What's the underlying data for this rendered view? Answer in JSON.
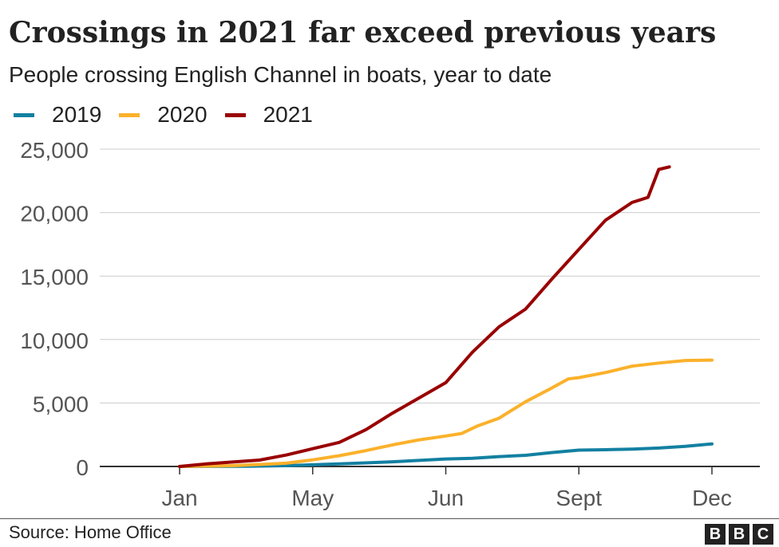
{
  "title": "Crossings in 2021 far exceed previous years",
  "subtitle": "People crossing English Channel in boats, year to date",
  "source": "Source: Home Office",
  "logo": [
    "B",
    "B",
    "C"
  ],
  "colors": {
    "2019": "#1380a1",
    "2020": "#fbb12b",
    "2021": "#990000",
    "grid": "#cccccc",
    "axis": "#333333"
  },
  "chart_data": {
    "type": "line",
    "xlabel": "",
    "ylabel": "",
    "x_ticks": [
      "Jan",
      "May",
      "Jun",
      "Sept",
      "Dec"
    ],
    "x_tick_month_pos": [
      0,
      2.5,
      5,
      7.5,
      10
    ],
    "xlim_month_pos": [
      -1.5,
      10.9
    ],
    "y_ticks": [
      "0",
      "5,000",
      "10,000",
      "15,000",
      "20,000",
      "25,000"
    ],
    "ylim": [
      0,
      25000
    ],
    "grid": true,
    "legend_position": "top-left",
    "series": [
      {
        "name": "2019",
        "color": "#1380a1",
        "x": [
          0.0,
          1.25,
          2.0,
          2.5,
          3.0,
          3.5,
          4.0,
          4.5,
          5.0,
          5.5,
          6.0,
          6.5,
          7.0,
          7.5,
          8.0,
          8.5,
          9.0,
          9.5,
          10.0
        ],
        "y": [
          0,
          20,
          60,
          130,
          200,
          280,
          370,
          480,
          590,
          650,
          780,
          880,
          1100,
          1290,
          1320,
          1370,
          1450,
          1590,
          1780
        ]
      },
      {
        "name": "2020",
        "color": "#fbb12b",
        "x": [
          0.0,
          1.0,
          1.5,
          2.0,
          2.5,
          3.0,
          3.5,
          4.0,
          4.5,
          5.0,
          5.3,
          5.6,
          6.0,
          6.5,
          7.0,
          7.3,
          7.5,
          8.0,
          8.5,
          9.0,
          9.5,
          10.0
        ],
        "y": [
          0,
          60,
          160,
          260,
          520,
          850,
          1250,
          1700,
          2100,
          2400,
          2600,
          3200,
          3800,
          5100,
          6200,
          6900,
          7000,
          7400,
          7900,
          8150,
          8350,
          8380
        ]
      },
      {
        "name": "2021",
        "color": "#990000",
        "x": [
          0.0,
          0.5,
          1.0,
          1.5,
          2.0,
          2.5,
          3.0,
          3.5,
          4.0,
          4.5,
          5.0,
          5.5,
          6.0,
          6.5,
          7.0,
          7.5,
          8.0,
          8.5,
          8.8,
          9.0,
          9.2
        ],
        "y": [
          0,
          200,
          350,
          500,
          900,
          1400,
          1900,
          2900,
          4200,
          5400,
          6600,
          9000,
          11000,
          12400,
          14800,
          17100,
          19400,
          20800,
          21200,
          23400,
          23600
        ]
      }
    ]
  }
}
